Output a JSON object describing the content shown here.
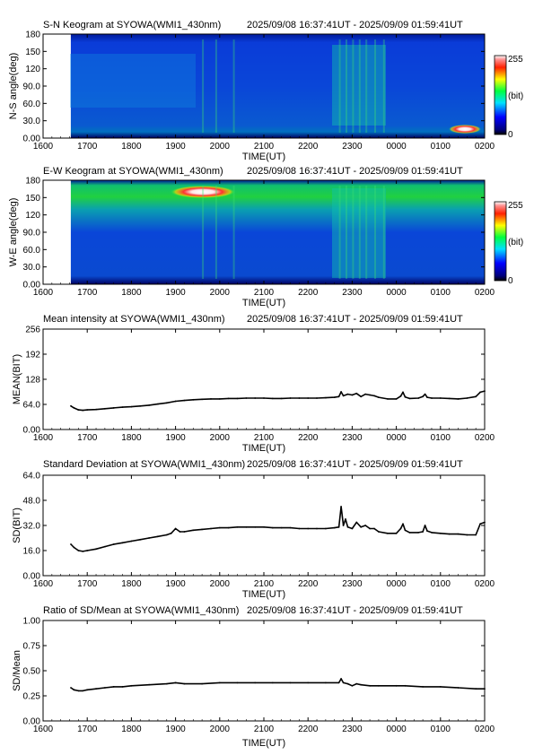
{
  "panels": {
    "sn": {
      "title": "S-N Keogram at SYOWA(WMI1_430nm)",
      "range": "2025/09/08 16:37:41UT - 2025/09/09 01:59:41UT",
      "ylabel": "N-S angle(deg)",
      "xlabel": "TIME(UT)",
      "yticks": [
        "180",
        "150",
        "120",
        "90.0",
        "60.0",
        "30.0",
        "0.00"
      ],
      "colorbar": {
        "max": "255",
        "unit": "(bit)",
        "min": "0"
      }
    },
    "ew": {
      "title": "E-W Keogram at SYOWA(WMI1_430nm)",
      "range": "2025/09/08 16:37:41UT - 2025/09/09 01:59:41UT",
      "ylabel": "W-E angle(deg)",
      "xlabel": "TIME(UT)",
      "yticks": [
        "180",
        "150",
        "120",
        "90.0",
        "60.0",
        "30.0",
        "0.00"
      ],
      "colorbar": {
        "max": "255",
        "unit": "(bit)",
        "min": "0"
      }
    },
    "mean": {
      "title": "Mean intensity at SYOWA(WMI1_430nm)",
      "range": "2025/09/08 16:37:41UT - 2025/09/09 01:59:41UT",
      "ylabel": "MEAN(BIT)",
      "xlabel": "TIME(UT)",
      "yticks": [
        "256",
        "192",
        "128",
        "64.0",
        "0.00"
      ]
    },
    "sd": {
      "title": "Standard Deviation at SYOWA(WMI1_430nm)",
      "range": "2025/09/08 16:37:41UT - 2025/09/09 01:59:41UT",
      "ylabel": "SD(BIT)",
      "xlabel": "TIME(UT)",
      "yticks": [
        "64.0",
        "48.0",
        "32.0",
        "16.0",
        "0.00"
      ]
    },
    "ratio": {
      "title": "Ratio of SD/Mean at SYOWA(WMI1_430nm)",
      "range": "2025/09/08 16:37:41UT - 2025/09/09 01:59:41UT",
      "ylabel": "SD/Mean",
      "xlabel": "TIME(UT)",
      "yticks": [
        "1.00",
        "0.75",
        "0.50",
        "0.25",
        "0.00"
      ]
    }
  },
  "xticks": [
    "1600",
    "1700",
    "1800",
    "1900",
    "2000",
    "2100",
    "2200",
    "2300",
    "0000",
    "0100",
    "0200"
  ],
  "chart_data": [
    {
      "type": "heatmap",
      "title": "S-N Keogram at SYOWA(WMI1_430nm)",
      "xlabel": "TIME(UT)",
      "ylabel": "N-S angle(deg)",
      "xlim": [
        16.0,
        26.0
      ],
      "ylim": [
        0,
        180
      ],
      "zlim": [
        0,
        255
      ],
      "data_start": 16.628,
      "features": [
        {
          "time": [
            16.63,
            26.0
          ],
          "angle": [
            0,
            180
          ],
          "level": "background blue (~80-110 bit)"
        },
        {
          "time": [
            16.63,
            19.0
          ],
          "angle": [
            40,
            180
          ],
          "level": "dim blue-cyan band"
        },
        {
          "time": [
            22.6,
            23.8
          ],
          "angle": [
            20,
            160
          ],
          "level": "cyan-green arcs"
        },
        {
          "time": [
            25.3,
            25.8
          ],
          "angle": [
            5,
            20
          ],
          "level": "bright spot ~255"
        }
      ],
      "colorbar": {
        "min": 0,
        "max": 255,
        "unit": "(bit)"
      }
    },
    {
      "type": "heatmap",
      "title": "E-W Keogram at SYOWA(WMI1_430nm)",
      "xlabel": "TIME(UT)",
      "ylabel": "W-E angle(deg)",
      "xlim": [
        16.0,
        26.0
      ],
      "ylim": [
        0,
        180
      ],
      "zlim": [
        0,
        255
      ],
      "data_start": 16.628,
      "features": [
        {
          "time": [
            16.63,
            26.0
          ],
          "angle": [
            0,
            180
          ],
          "level": "background blue-green"
        },
        {
          "time": [
            16.63,
            26.0
          ],
          "angle": [
            135,
            180
          ],
          "level": "green band"
        },
        {
          "time": [
            19.1,
            20.5
          ],
          "angle": [
            155,
            175
          ],
          "level": "bright spot ~255"
        },
        {
          "time": [
            22.6,
            23.8
          ],
          "angle": [
            10,
            170
          ],
          "level": "cyan-green arcs"
        }
      ],
      "colorbar": {
        "min": 0,
        "max": 255,
        "unit": "(bit)"
      }
    },
    {
      "type": "line",
      "title": "Mean intensity at SYOWA(WMI1_430nm)",
      "xlabel": "TIME(UT)",
      "ylabel": "MEAN(BIT)",
      "xlim": [
        16.0,
        26.0
      ],
      "ylim": [
        0,
        256
      ],
      "grid": false,
      "x": [
        16.63,
        16.7,
        16.8,
        16.9,
        17.0,
        17.2,
        17.4,
        17.6,
        17.8,
        18.0,
        18.2,
        18.4,
        18.6,
        18.8,
        19.0,
        19.2,
        19.4,
        19.6,
        19.8,
        20.0,
        20.2,
        20.4,
        20.6,
        20.8,
        21.0,
        21.2,
        21.4,
        21.6,
        21.8,
        22.0,
        22.2,
        22.4,
        22.6,
        22.7,
        22.75,
        22.8,
        22.9,
        23.0,
        23.1,
        23.2,
        23.3,
        23.4,
        23.5,
        23.6,
        23.8,
        24.0,
        24.1,
        24.15,
        24.2,
        24.3,
        24.5,
        24.6,
        24.65,
        24.7,
        24.8,
        25.0,
        25.2,
        25.4,
        25.6,
        25.8,
        25.9,
        26.0
      ],
      "y": [
        60,
        55,
        50,
        49,
        50,
        51,
        53,
        55,
        57,
        58,
        60,
        62,
        65,
        68,
        72,
        74,
        76,
        77,
        78,
        78,
        79,
        79,
        80,
        80,
        80,
        79,
        79,
        80,
        80,
        80,
        80,
        81,
        82,
        84,
        96,
        86,
        90,
        88,
        92,
        84,
        90,
        88,
        86,
        82,
        78,
        78,
        85,
        95,
        83,
        79,
        80,
        84,
        90,
        82,
        80,
        80,
        79,
        78,
        80,
        84,
        95,
        98
      ]
    },
    {
      "type": "line",
      "title": "Standard Deviation at SYOWA(WMI1_430nm)",
      "xlabel": "TIME(UT)",
      "ylabel": "SD(BIT)",
      "xlim": [
        16.0,
        26.0
      ],
      "ylim": [
        0,
        64
      ],
      "grid": false,
      "x": [
        16.63,
        16.7,
        16.8,
        16.9,
        17.0,
        17.2,
        17.4,
        17.6,
        17.8,
        18.0,
        18.2,
        18.4,
        18.6,
        18.8,
        18.9,
        19.0,
        19.1,
        19.2,
        19.4,
        19.6,
        19.8,
        20.0,
        20.2,
        20.4,
        20.6,
        20.8,
        21.0,
        21.2,
        21.4,
        21.6,
        21.8,
        22.0,
        22.2,
        22.4,
        22.6,
        22.7,
        22.75,
        22.8,
        22.85,
        22.9,
        23.0,
        23.1,
        23.2,
        23.3,
        23.4,
        23.5,
        23.6,
        23.8,
        24.0,
        24.1,
        24.15,
        24.2,
        24.3,
        24.5,
        24.6,
        24.65,
        24.7,
        24.8,
        25.0,
        25.2,
        25.4,
        25.6,
        25.8,
        25.9,
        26.0
      ],
      "y": [
        20,
        18,
        16,
        15.5,
        16,
        17,
        18.5,
        20,
        21,
        22,
        23,
        24,
        25,
        26,
        27,
        30,
        28,
        28,
        29,
        29.5,
        30,
        30.5,
        30.5,
        31,
        31,
        31,
        31,
        30.5,
        30.5,
        30.5,
        30,
        30,
        30,
        30,
        30.5,
        31,
        44,
        32,
        36,
        31,
        30,
        34,
        31,
        32,
        30,
        30,
        28,
        27,
        27,
        30,
        33,
        29,
        27.5,
        27.5,
        28,
        32,
        28.5,
        27.5,
        27,
        26.5,
        26.5,
        26,
        26,
        33,
        34
      ]
    },
    {
      "type": "line",
      "title": "Ratio of SD/Mean at SYOWA(WMI1_430nm)",
      "xlabel": "TIME(UT)",
      "ylabel": "SD/Mean",
      "xlim": [
        16.0,
        26.0
      ],
      "ylim": [
        0,
        1
      ],
      "grid": false,
      "x": [
        16.63,
        16.7,
        16.8,
        16.9,
        17.0,
        17.2,
        17.4,
        17.6,
        17.8,
        18.0,
        18.4,
        18.8,
        19.0,
        19.2,
        19.6,
        20.0,
        20.4,
        20.8,
        21.2,
        21.6,
        22.0,
        22.4,
        22.7,
        22.75,
        22.8,
        22.9,
        23.0,
        23.1,
        23.2,
        23.4,
        23.6,
        24.0,
        24.2,
        24.6,
        25.0,
        25.4,
        25.8,
        26.0
      ],
      "y": [
        0.33,
        0.31,
        0.3,
        0.3,
        0.31,
        0.32,
        0.33,
        0.34,
        0.34,
        0.35,
        0.36,
        0.37,
        0.38,
        0.37,
        0.37,
        0.38,
        0.38,
        0.38,
        0.38,
        0.38,
        0.38,
        0.38,
        0.38,
        0.42,
        0.38,
        0.37,
        0.35,
        0.37,
        0.36,
        0.35,
        0.35,
        0.35,
        0.35,
        0.34,
        0.34,
        0.33,
        0.32,
        0.32
      ]
    }
  ]
}
